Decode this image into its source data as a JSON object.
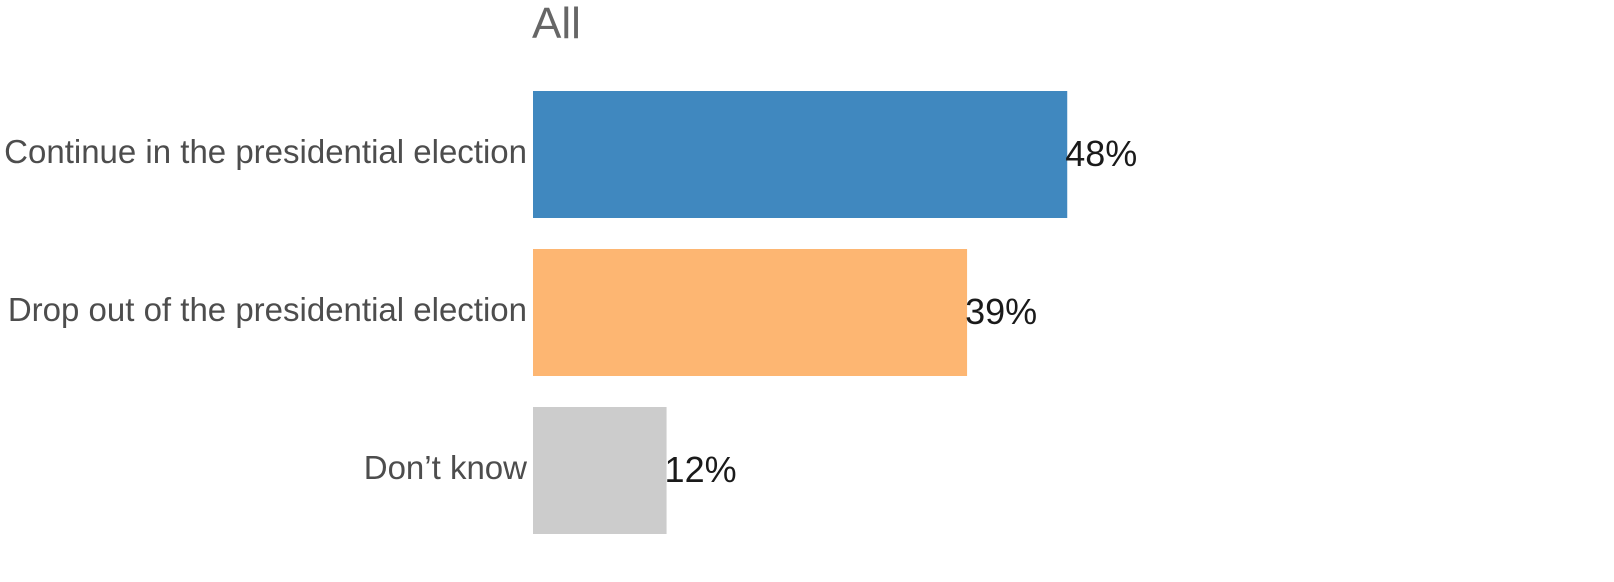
{
  "chart_data": {
    "type": "bar",
    "orientation": "horizontal",
    "title": "All",
    "categories": [
      "Continue in the presidential election",
      "Drop out of the presidential election",
      "Don’t know"
    ],
    "values": [
      48,
      39,
      12
    ],
    "value_labels": [
      "48%",
      "39%",
      "12%"
    ],
    "colors": [
      "#4088bf",
      "#fdb672",
      "#cccccc"
    ],
    "xlim": [
      0,
      100
    ],
    "grid": false,
    "legend": "none"
  }
}
